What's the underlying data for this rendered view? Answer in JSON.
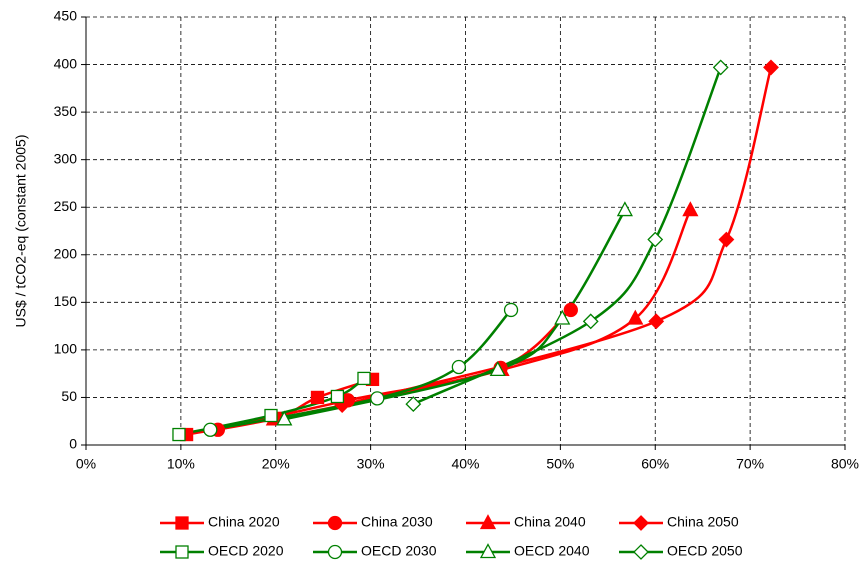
{
  "chart_data": {
    "type": "scatter-smooth",
    "y_label": "US$ / tCO2-eq (constant 2005)",
    "xlim": [
      0,
      80
    ],
    "xticks": [
      {
        "value": 0,
        "label": "0%"
      },
      {
        "value": 10,
        "label": "10%"
      },
      {
        "value": 20,
        "label": "20%"
      },
      {
        "value": 30,
        "label": "30%"
      },
      {
        "value": 40,
        "label": "40%"
      },
      {
        "value": 50,
        "label": "50%"
      },
      {
        "value": 60,
        "label": "60%"
      },
      {
        "value": 70,
        "label": "70%"
      },
      {
        "value": 80,
        "label": "80%"
      }
    ],
    "ylim": [
      0,
      450
    ],
    "yticks": [
      0,
      50,
      100,
      150,
      200,
      250,
      300,
      350,
      400,
      450
    ],
    "grid": true,
    "legend": "bottom",
    "series": [
      {
        "name": "China 2020",
        "color": "#ff0000",
        "marker": "square",
        "hollow": false,
        "x": [
          10.6,
          19.9,
          24.4,
          30.2
        ],
        "values": [
          11,
          28,
          50,
          69
        ]
      },
      {
        "name": "China 2030",
        "color": "#ff0000",
        "marker": "circle",
        "hollow": false,
        "x": [
          13.9,
          27.6,
          43.7,
          51.1
        ],
        "values": [
          16,
          47,
          81,
          142
        ]
      },
      {
        "name": "China 2040",
        "color": "#ff0000",
        "marker": "triangle",
        "hollow": false,
        "x": [
          19.8,
          43.8,
          57.9,
          63.7
        ],
        "values": [
          27,
          79,
          133,
          247
        ]
      },
      {
        "name": "China 2050",
        "color": "#ff0000",
        "marker": "diamond",
        "hollow": false,
        "x": [
          27.0,
          60.1,
          67.5,
          72.2
        ],
        "values": [
          42,
          130,
          216,
          397
        ]
      },
      {
        "name": "OECD 2020",
        "color": "#008000",
        "marker": "square",
        "hollow": true,
        "x": [
          9.8,
          19.5,
          26.5,
          29.3
        ],
        "values": [
          11,
          31,
          51,
          70
        ]
      },
      {
        "name": "OECD 2030",
        "color": "#008000",
        "marker": "circle",
        "hollow": true,
        "x": [
          13.1,
          30.7,
          39.3,
          44.8
        ],
        "values": [
          16,
          49,
          82,
          142
        ]
      },
      {
        "name": "OECD 2040",
        "color": "#008000",
        "marker": "triangle",
        "hollow": true,
        "x": [
          20.9,
          43.4,
          50.2,
          56.8
        ],
        "values": [
          27,
          79,
          133,
          247
        ]
      },
      {
        "name": "OECD 2050",
        "color": "#008000",
        "marker": "diamond",
        "hollow": true,
        "x": [
          34.5,
          53.2,
          60.0,
          66.9
        ],
        "values": [
          43,
          130,
          216,
          397
        ]
      }
    ]
  }
}
